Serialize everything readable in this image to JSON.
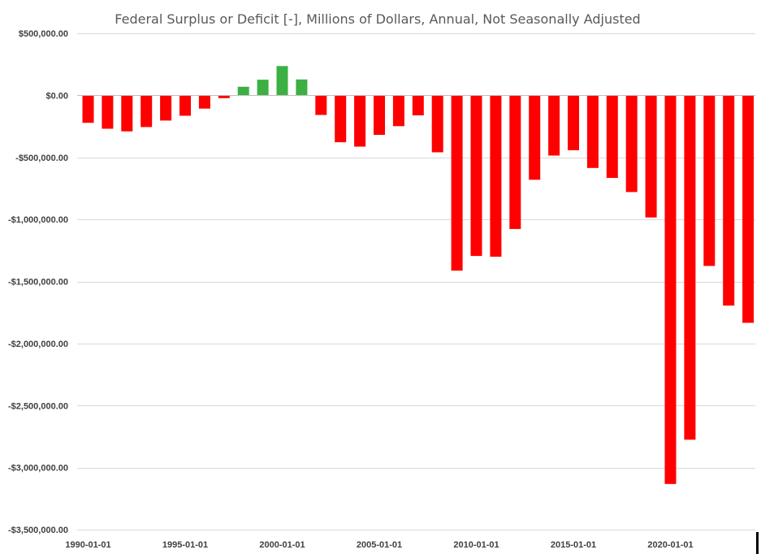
{
  "chart_data": {
    "type": "bar",
    "title": "Federal Surplus or Deficit [-], Millions of Dollars, Annual, Not Seasonally Adjusted",
    "xlabel": "",
    "ylabel": "",
    "ylim": [
      -3500000,
      500000
    ],
    "y_ticks": [
      500000,
      0,
      -500000,
      -1000000,
      -1500000,
      -2000000,
      -2500000,
      -3000000,
      -3500000
    ],
    "y_tick_labels": [
      "$500,000.00",
      "$0.00",
      "-$500,000.00",
      "-$1,000,000.00",
      "-$1,500,000.00",
      "-$2,000,000.00",
      "-$2,500,000.00",
      "-$3,000,000.00",
      "-$3,500,000.00"
    ],
    "x_tick_labels": [
      "1990-01-01",
      "1995-01-01",
      "2000-01-01",
      "2005-01-01",
      "2010-01-01",
      "2015-01-01",
      "2020-01-01"
    ],
    "x_tick_categories": [
      "1990",
      "1995",
      "2000",
      "2005",
      "2010",
      "2015",
      "2020"
    ],
    "categories": [
      "1990",
      "1991",
      "1992",
      "1993",
      "1994",
      "1995",
      "1996",
      "1997",
      "1998",
      "1999",
      "2000",
      "2001",
      "2002",
      "2003",
      "2004",
      "2005",
      "2006",
      "2007",
      "2008",
      "2009",
      "2010",
      "2011",
      "2012",
      "2013",
      "2014",
      "2015",
      "2016",
      "2017",
      "2018",
      "2019",
      "2020",
      "2021",
      "2022",
      "2023",
      "2024"
    ],
    "values": [
      -221000,
      -269000,
      -290000,
      -255000,
      -203000,
      -164000,
      -107000,
      -22000,
      69000,
      126000,
      236000,
      128000,
      -158000,
      -378000,
      -413000,
      -318000,
      -248000,
      -161000,
      -459000,
      -1413000,
      -1294000,
      -1300000,
      -1077000,
      -680000,
      -485000,
      -442000,
      -585000,
      -665000,
      -779000,
      -984000,
      -3132000,
      -2775000,
      -1375000,
      -1694000,
      -1833000
    ],
    "positive_color": "#3cb043",
    "negative_color": "#ff0000",
    "gridlines": true,
    "legend": "none"
  }
}
